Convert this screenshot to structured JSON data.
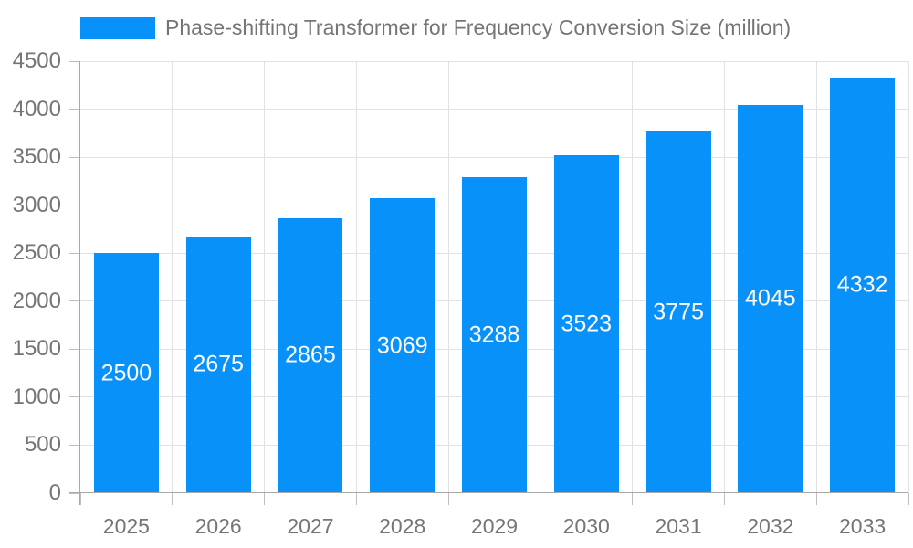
{
  "legend": {
    "label": "Phase-shifting Transformer for Frequency Conversion Size (million)"
  },
  "chart_data": {
    "type": "bar",
    "title": "",
    "xlabel": "",
    "ylabel": "",
    "series_name": "Phase-shifting Transformer for Frequency Conversion Size (million)",
    "categories": [
      "2025",
      "2026",
      "2027",
      "2028",
      "2029",
      "2030",
      "2031",
      "2032",
      "2033"
    ],
    "values": [
      2500,
      2675,
      2865,
      3069,
      3288,
      3523,
      3775,
      4045,
      4332
    ],
    "ylim": [
      0,
      4500
    ],
    "yticks": [
      0,
      500,
      1000,
      1500,
      2000,
      2500,
      3000,
      3500,
      4000,
      4500
    ],
    "grid": true,
    "legend_position": "top-left",
    "bar_label_position": "inside-center",
    "colors": {
      "bar": "#0991fa",
      "value_label": "#ffffff",
      "axis_text": "#757575",
      "grid_line": "#e2e2e2",
      "axis_line": "#a9a9a9",
      "tick_line": "#bdbdbd",
      "background": "#ffffff"
    }
  }
}
